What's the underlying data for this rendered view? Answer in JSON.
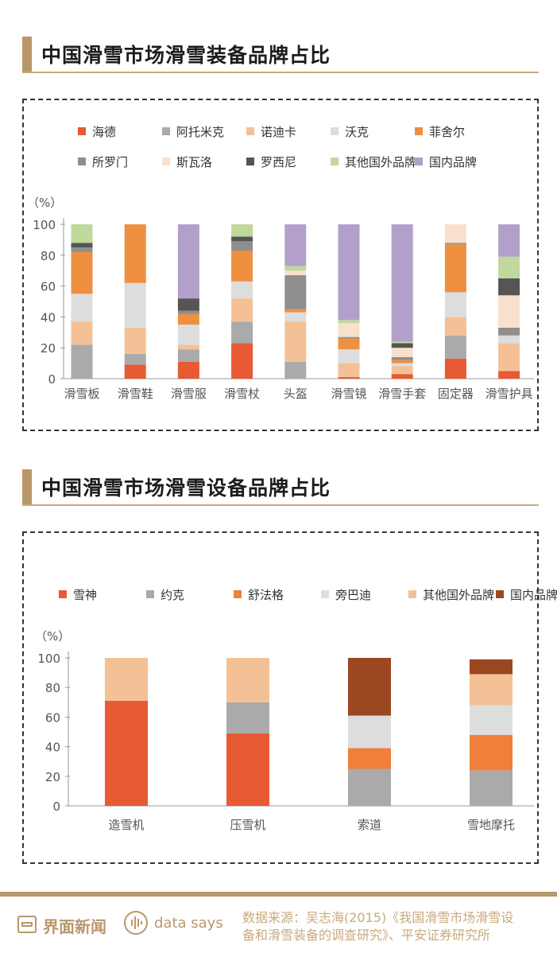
{
  "charts": [
    {
      "title": "中国滑雪市场滑雪装备品牌占比"
    },
    {
      "title": "中国滑雪市场滑雪设备品牌占比"
    }
  ],
  "chart_data": [
    {
      "type": "bar",
      "stacked": true,
      "title": "中国滑雪市场滑雪装备品牌占比",
      "ylabel": "（%）",
      "ylim": [
        0,
        100
      ],
      "yticks": [
        0,
        20,
        40,
        60,
        80,
        100
      ],
      "legend_position": "top",
      "categories": [
        "滑雪板",
        "滑雪鞋",
        "滑雪服",
        "滑雪杖",
        "头盔",
        "滑雪镜",
        "滑雪手套",
        "固定器",
        "滑雪护具"
      ],
      "series": [
        {
          "name": "海德",
          "color": "#e75a33",
          "values": [
            0,
            9,
            11,
            23,
            0,
            1,
            3,
            13,
            5
          ]
        },
        {
          "name": "阿托米克",
          "color": "#aaaaaa",
          "values": [
            22,
            7,
            8,
            14,
            11,
            0,
            0,
            15,
            0
          ]
        },
        {
          "name": "诺迪卡",
          "color": "#f4c196",
          "values": [
            15,
            17,
            3,
            15,
            26,
            9,
            5,
            12,
            18
          ]
        },
        {
          "name": "沃克",
          "color": "#dddddd",
          "values": [
            18,
            29,
            13,
            11,
            6,
            9,
            2,
            16,
            5
          ]
        },
        {
          "name": "菲舍尔",
          "color": "#ef8f40",
          "values": [
            27,
            38,
            7,
            20,
            2,
            7,
            2,
            31,
            0
          ]
        },
        {
          "name": "所罗门",
          "color": "#8e8e8e",
          "values": [
            3,
            0,
            2,
            6,
            22,
            1,
            2,
            1,
            5
          ]
        },
        {
          "name": "斯瓦洛",
          "color": "#f9e0cc",
          "values": [
            0,
            0,
            0,
            0,
            3,
            9,
            6,
            12,
            21
          ]
        },
        {
          "name": "罗西尼",
          "color": "#555555",
          "values": [
            3,
            0,
            8,
            3,
            0,
            0,
            3,
            0,
            11
          ]
        },
        {
          "name": "其他国外品牌",
          "color": "#bfd89c",
          "values": [
            12,
            0,
            0,
            8,
            3,
            2,
            1,
            0,
            14
          ]
        },
        {
          "name": "国内品牌",
          "color": "#b2a0ca",
          "values": [
            0,
            0,
            48,
            0,
            27,
            62,
            76,
            0,
            21
          ]
        }
      ]
    },
    {
      "type": "bar",
      "stacked": true,
      "title": "中国滑雪市场滑雪设备品牌占比",
      "ylabel": "（%）",
      "ylim": [
        0,
        100
      ],
      "yticks": [
        0,
        20,
        40,
        60,
        80,
        100
      ],
      "legend_position": "top",
      "categories": [
        "造雪机",
        "压雪机",
        "索道",
        "雪地摩托"
      ],
      "series": [
        {
          "name": "雪神",
          "color": "#e75a33",
          "values": [
            71,
            49,
            0,
            0
          ]
        },
        {
          "name": "约克",
          "color": "#aaaaaa",
          "values": [
            0,
            21,
            25,
            24
          ]
        },
        {
          "name": "舒法格",
          "color": "#ef7f3a",
          "values": [
            0,
            0,
            14,
            24
          ]
        },
        {
          "name": "旁巴迪",
          "color": "#dddddd",
          "values": [
            0,
            0,
            22,
            20
          ]
        },
        {
          "name": "其他国外品牌",
          "color": "#f4c196",
          "values": [
            29,
            30,
            0,
            21
          ]
        },
        {
          "name": "国内品牌",
          "color": "#9b4720",
          "values": [
            0,
            0,
            39,
            10
          ]
        }
      ]
    }
  ],
  "footer": {
    "brand": "界面新闻",
    "data_says": "data says",
    "source_line1": "数据来源：吴志海(2015)《我国滑雪市场滑雪设",
    "source_line2": "备和滑雪装备的调查研究》、平安证券研究所"
  }
}
